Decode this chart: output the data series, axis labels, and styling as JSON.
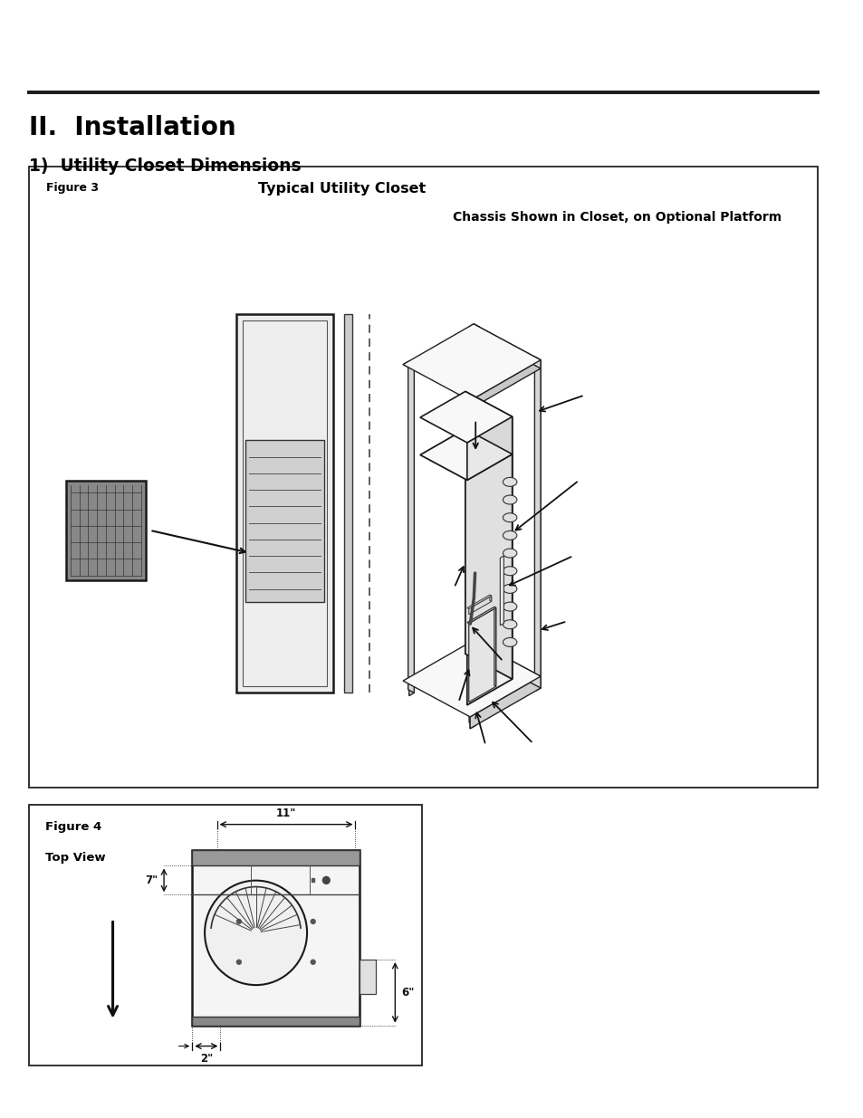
{
  "bg_color": "#ffffff",
  "page_width": 9.54,
  "page_height": 12.35,
  "title1": "II.  Installation",
  "title2": "1)  Utility Closet Dimensions",
  "fig3_label": "Figure 3",
  "fig3_title": "Typical Utility Closet",
  "fig3_subtitle": "Chassis Shown in Closet, on Optional Platform",
  "fig4_label": "Figure 4",
  "fig4_sublabel": "Top View",
  "dim_11": "11\"",
  "dim_7": "7\"",
  "dim_6": "6\"",
  "dim_2": "2\"",
  "font_color": "#000000",
  "rule_color": "#1a1a1a",
  "box_edge_color": "#222222"
}
